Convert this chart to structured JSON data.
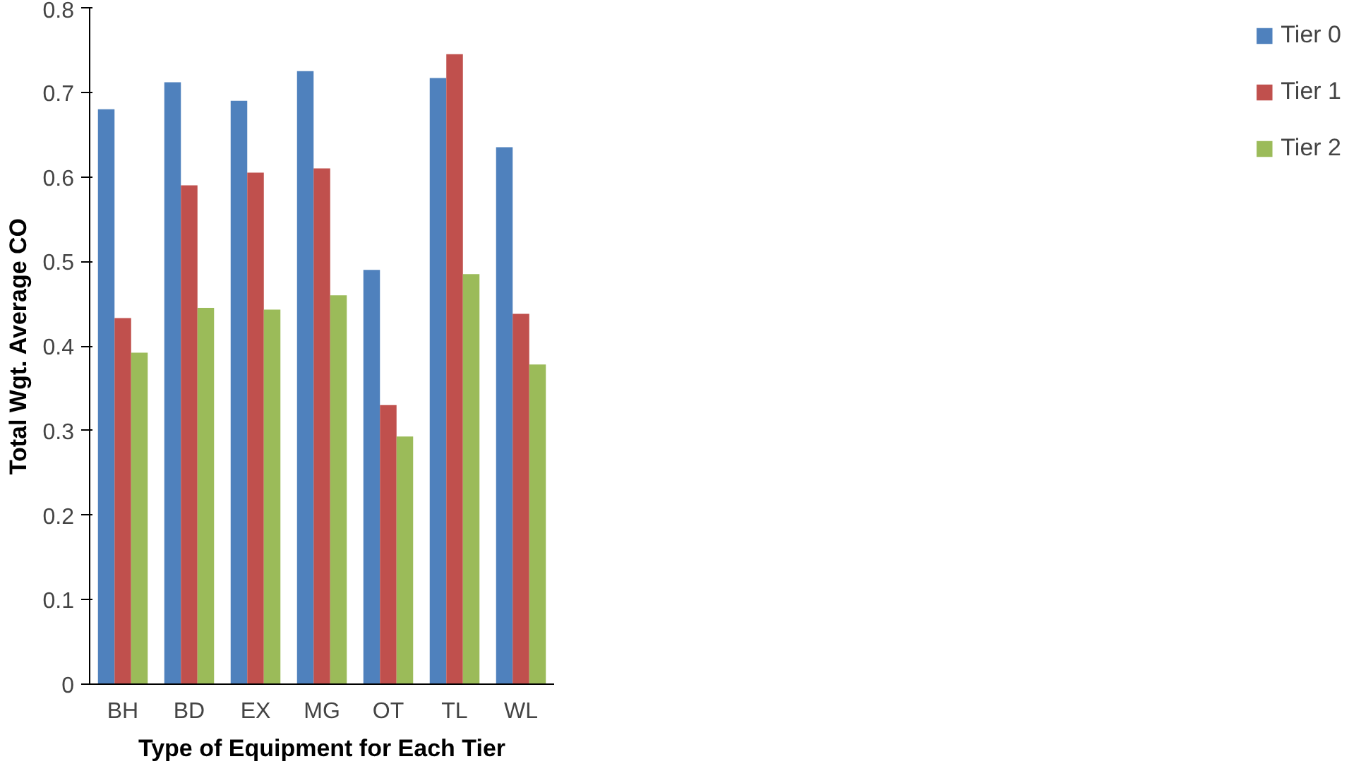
{
  "chart_data": {
    "type": "bar",
    "xlabel": "Type of Equipment for Each Tier",
    "ylabel": "Total Wgt. Average CO",
    "categories": [
      "BH",
      "BD",
      "EX",
      "MG",
      "OT",
      "TL",
      "WL"
    ],
    "series": [
      {
        "name": "Tier 0",
        "color": "#4f81bd",
        "values": [
          0.68,
          0.712,
          0.69,
          0.725,
          0.49,
          0.717,
          0.635
        ]
      },
      {
        "name": "Tier 1",
        "color": "#c0504d",
        "values": [
          0.433,
          0.59,
          0.605,
          0.61,
          0.33,
          0.745,
          0.438
        ]
      },
      {
        "name": "Tier 2",
        "color": "#9bbb59",
        "values": [
          0.392,
          0.445,
          0.443,
          0.46,
          0.293,
          0.485,
          0.378
        ]
      }
    ],
    "ylim": [
      0,
      0.8
    ],
    "yticks": [
      0,
      0.1,
      0.2,
      0.3,
      0.4,
      0.5,
      0.6,
      0.7,
      0.8
    ],
    "grid": false,
    "legend": "right"
  }
}
